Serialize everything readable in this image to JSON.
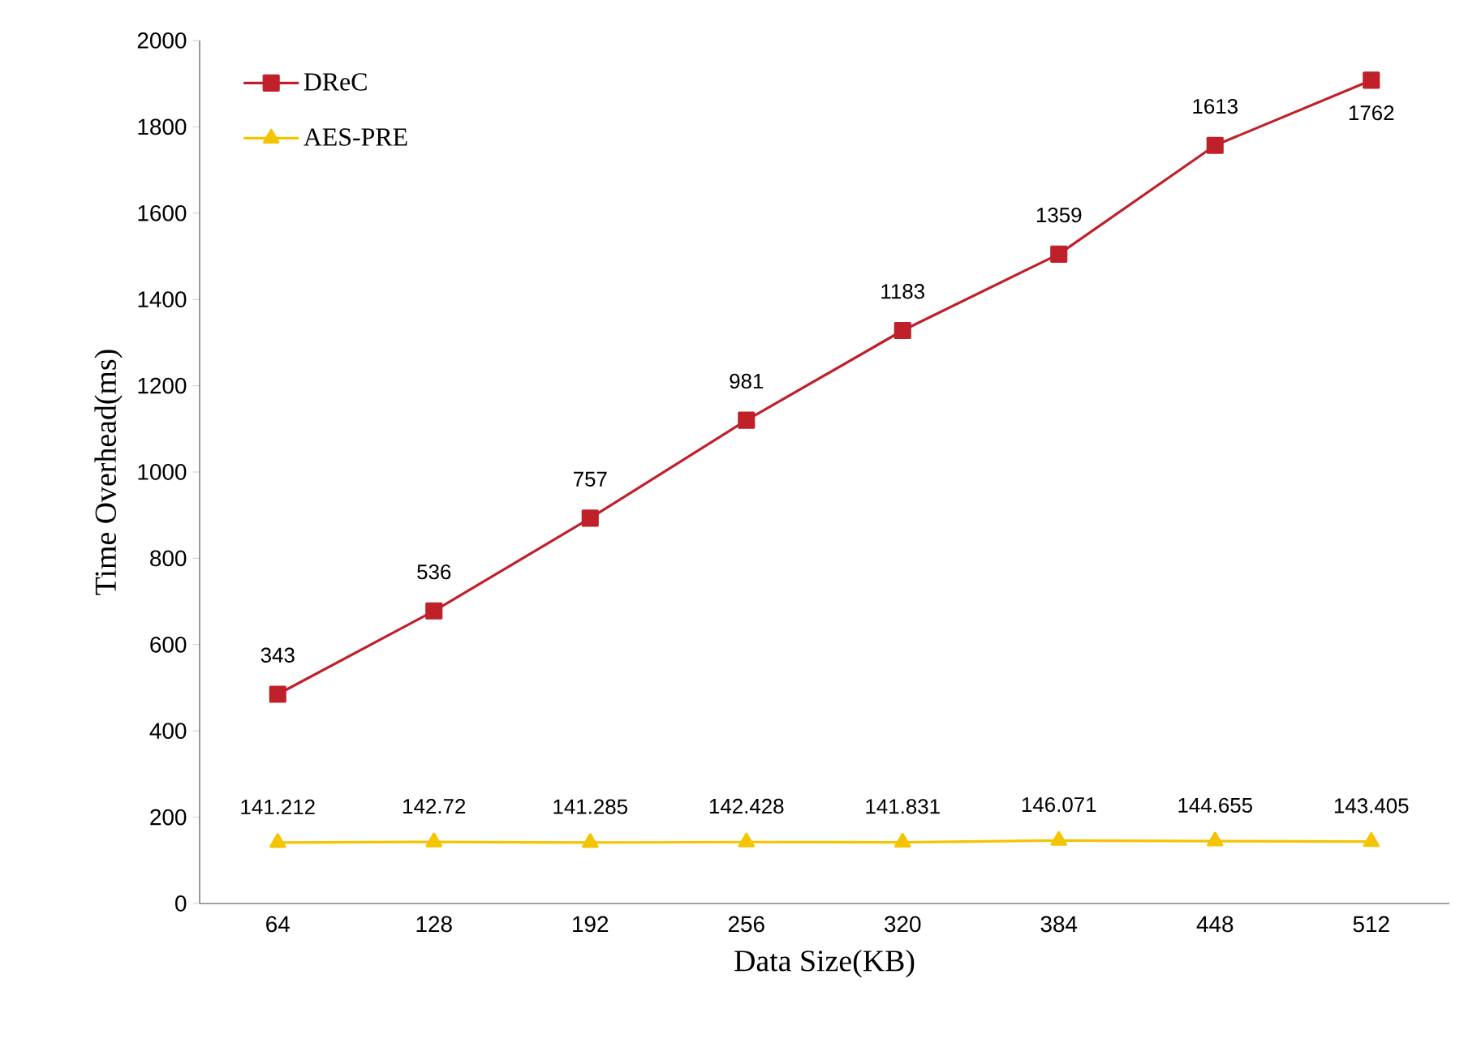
{
  "chart_data": {
    "type": "line",
    "xlabel": "Data Size(KB)",
    "ylabel": "Time Overhead(ms)",
    "categories": [
      "64",
      "128",
      "192",
      "256",
      "320",
      "384",
      "448",
      "512"
    ],
    "series": [
      {
        "name": "DReC",
        "color": "#c0202a",
        "marker": "square",
        "values": [
          485,
          678,
          893,
          1120,
          1328,
          1505,
          1757,
          1908
        ]
      },
      {
        "name": "AES-PRE",
        "color": "#f5c400",
        "marker": "triangle",
        "values": [
          141.212,
          142.72,
          141.285,
          142.428,
          141.831,
          146.071,
          144.655,
          143.405
        ],
        "value_labels": [
          "141.212",
          "142.72",
          "141.285",
          "142.428",
          "141.831",
          "146.071",
          "144.655",
          "143.405"
        ]
      }
    ],
    "annotations": [
      {
        "text": "343",
        "x": "64",
        "y": 485
      },
      {
        "text": "536",
        "x": "128",
        "y": 678
      },
      {
        "text": "757",
        "x": "192",
        "y": 893
      },
      {
        "text": "981",
        "x": "256",
        "y": 1120
      },
      {
        "text": "1183",
        "x": "320",
        "y": 1328
      },
      {
        "text": "1359",
        "x": "384",
        "y": 1505
      },
      {
        "text": "1613",
        "x": "448",
        "y": 1757
      },
      {
        "text": "1762",
        "x": "512",
        "y": 1908
      }
    ],
    "ylim": [
      0,
      2000
    ],
    "yticks": [
      0,
      200,
      400,
      600,
      800,
      1000,
      1200,
      1400,
      1600,
      1800,
      2000
    ],
    "grid": false,
    "legend": "top left",
    "line_style": "solid"
  }
}
